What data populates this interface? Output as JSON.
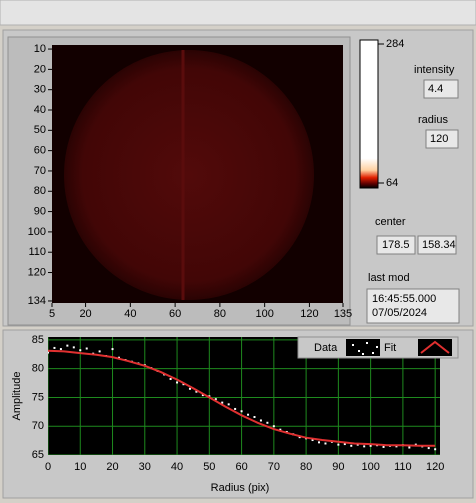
{
  "chart_data": [
    {
      "type": "image",
      "xlim": [
        5,
        135
      ],
      "ylim": [
        8,
        135
      ],
      "y_inverted": true,
      "xticks": [
        5,
        20,
        40,
        60,
        80,
        100,
        120,
        135
      ],
      "yticks": [
        10,
        20,
        30,
        40,
        50,
        60,
        70,
        80,
        90,
        100,
        110,
        120,
        134
      ]
    },
    {
      "type": "line",
      "xlabel": "Radius (pix)",
      "ylabel": "Amplitude",
      "xlim": [
        0,
        121.5
      ],
      "ylim": [
        65,
        85.5
      ],
      "xticks": [
        0,
        10,
        20,
        30,
        40,
        50,
        60,
        70,
        80,
        90,
        100,
        110,
        120
      ],
      "yticks": [
        65,
        70,
        75,
        80,
        85
      ],
      "grid": true,
      "series": [
        {
          "name": "Data",
          "color": "#ffffff",
          "marker": "dot",
          "x": [
            0,
            2,
            4,
            6,
            8,
            10,
            12,
            14,
            16,
            18,
            20,
            22,
            24,
            26,
            28,
            30,
            32,
            34,
            36,
            38,
            40,
            42,
            44,
            46,
            48,
            50,
            52,
            54,
            56,
            58,
            60,
            62,
            64,
            66,
            68,
            70,
            72,
            74,
            76,
            78,
            80,
            82,
            84,
            86,
            88,
            90,
            92,
            94,
            96,
            98,
            100,
            102,
            104,
            106,
            108,
            110,
            112,
            114,
            116,
            118,
            120
          ],
          "values": [
            82.8,
            83.6,
            83.4,
            84.0,
            83.7,
            83.2,
            83.5,
            82.6,
            83.0,
            82.2,
            83.4,
            81.9,
            81.5,
            81.2,
            80.9,
            80.6,
            80.1,
            79.6,
            79.0,
            78.2,
            77.6,
            77.3,
            76.5,
            76.0,
            75.4,
            75.2,
            74.7,
            74.1,
            73.8,
            73.0,
            72.6,
            72.0,
            71.6,
            71.0,
            70.6,
            70.0,
            69.4,
            69.0,
            68.6,
            68.1,
            67.9,
            67.6,
            67.2,
            67.0,
            67.3,
            66.8,
            66.9,
            66.6,
            66.8,
            66.5,
            66.6,
            66.7,
            66.4,
            66.6,
            66.5,
            66.7,
            66.3,
            66.8,
            66.5,
            66.2,
            66.0
          ]
        },
        {
          "name": "Fit",
          "color": "#e03030",
          "marker": "line",
          "x": [
            0,
            5,
            10,
            15,
            20,
            25,
            30,
            35,
            40,
            45,
            50,
            55,
            60,
            65,
            70,
            75,
            80,
            85,
            90,
            95,
            100,
            105,
            110,
            115,
            120
          ],
          "values": [
            83.1,
            83.0,
            82.7,
            82.4,
            82.0,
            81.3,
            80.5,
            79.4,
            78.1,
            76.6,
            75.0,
            73.4,
            71.9,
            70.6,
            69.5,
            68.7,
            68.0,
            67.6,
            67.3,
            67.0,
            66.9,
            66.7,
            66.7,
            66.6,
            66.6
          ]
        }
      ]
    }
  ],
  "colorbar": {
    "lim": [
      64,
      284
    ],
    "ticks": [
      284,
      64
    ]
  },
  "indicators": {
    "intensity": {
      "label": "intensity",
      "value": 4.4
    },
    "radius": {
      "label": "radius",
      "value": 120
    },
    "center": {
      "label": "center",
      "x": 178.5,
      "y": 158.34
    },
    "last_mod": {
      "label": "last mod",
      "time": "16:45:55.000",
      "date": "07/05/2024"
    }
  }
}
